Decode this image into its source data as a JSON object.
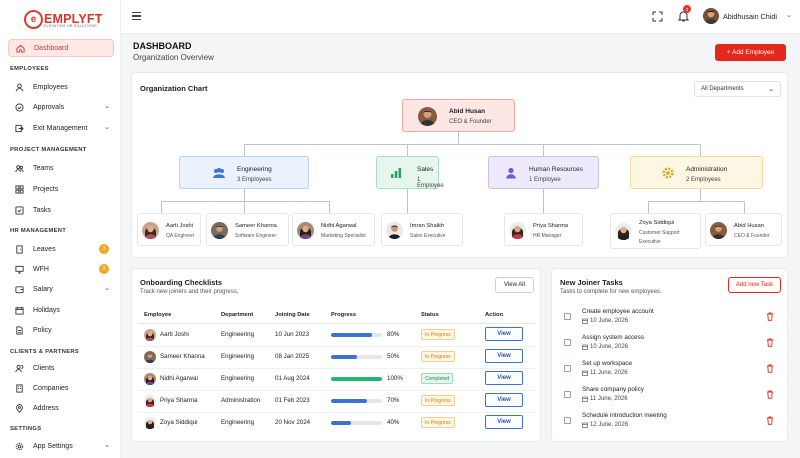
{
  "brand": {
    "name": "EMPLYFT",
    "tagline": "ELEVATING HR SOLUTIONS"
  },
  "sidebar": {
    "dashboard": "Dashboard",
    "sections": {
      "employees": "EMPLOYEES",
      "project": "PROJECT MANAGEMENT",
      "hr": "HR MANAGEMENT",
      "clients": "CLIENTS & PARTNERS",
      "settings": "SETTINGS"
    },
    "items": [
      {
        "label": "Employees"
      },
      {
        "label": "Approvals"
      },
      {
        "label": "Exit Management"
      },
      {
        "label": "Teams"
      },
      {
        "label": "Projects"
      },
      {
        "label": "Tasks"
      },
      {
        "label": "Leaves",
        "badge": "3"
      },
      {
        "label": "WFH",
        "badge": "2"
      },
      {
        "label": "Salary"
      },
      {
        "label": "Holidays"
      },
      {
        "label": "Policy"
      },
      {
        "label": "Clients"
      },
      {
        "label": "Companies"
      },
      {
        "label": "Address"
      },
      {
        "label": "App Settings"
      }
    ]
  },
  "topbar": {
    "notifications": "3",
    "user": "Abidhusain Chidi"
  },
  "page": {
    "title": "DASHBOARD",
    "subtitle": "Organization Overview",
    "add_button": "+ Add Employee"
  },
  "org": {
    "title": "Organization Chart",
    "filter": "All Departments",
    "ceo": {
      "name": "Abid Husan",
      "role": "CEO & Founder"
    },
    "departments": [
      {
        "name": "Engineering",
        "count": "3 Employees",
        "color": "#3d72e0"
      },
      {
        "name": "Sales",
        "count": "1 Employee",
        "color": "#22a35a"
      },
      {
        "name": "Human Resources",
        "count": "1 Employee",
        "color": "#7a55d6"
      },
      {
        "name": "Administration",
        "count": "2 Employees",
        "color": "#e7a11a"
      }
    ],
    "employees": [
      {
        "name": "Aarti Joshi",
        "role": "QA Engineer"
      },
      {
        "name": "Sameer Khanna",
        "role": "Software Engineer"
      },
      {
        "name": "Nidhi Agarwal",
        "role": "Marketing Specialist"
      },
      {
        "name": "Imran Shaikh",
        "role": "Sales Executive"
      },
      {
        "name": "Priya Sharma",
        "role": "HR Manager"
      },
      {
        "name": "Zoya Siddiqui",
        "role": "Customer Support Executive"
      },
      {
        "name": "Abid Husan",
        "role": "CEO & Founder"
      }
    ]
  },
  "onboarding": {
    "title": "Onboarding Checklists",
    "subtitle": "Track new joiners and their progress.",
    "view_all": "View All",
    "columns": [
      "Employee",
      "Department",
      "Joining Date",
      "Progress",
      "Status",
      "Action"
    ],
    "rows": [
      {
        "name": "Aarti Joshi",
        "dept": "Engineering",
        "date": "10 Jun 2023",
        "progress": 80,
        "progress_label": "80%",
        "status": "In Progress",
        "action": "View"
      },
      {
        "name": "Sameer Khanna",
        "dept": "Engineering",
        "date": "08 Jan 2025",
        "progress": 50,
        "progress_label": "50%",
        "status": "In Progress",
        "action": "View"
      },
      {
        "name": "Nidhi Agarwal",
        "dept": "Engineering",
        "date": "01 Aug 2024",
        "progress": 100,
        "progress_label": "100%",
        "status": "Completed",
        "action": "View"
      },
      {
        "name": "Priya Sharma",
        "dept": "Administration",
        "date": "01 Feb 2023",
        "progress": 70,
        "progress_label": "70%",
        "status": "In Progress",
        "action": "View"
      },
      {
        "name": "Zoya Siddiqui",
        "dept": "Engineering",
        "date": "20 Nov 2024",
        "progress": 40,
        "progress_label": "40%",
        "status": "In Progress",
        "action": "View"
      }
    ]
  },
  "tasks": {
    "title": "New Joiner Tasks",
    "subtitle": "Tasks to complete for new employees.",
    "add_button": "Add new Task",
    "items": [
      {
        "title": "Create employee account",
        "date": "10 June, 2026"
      },
      {
        "title": "Assign system access",
        "date": "10 June, 2026"
      },
      {
        "title": "Set up workspace",
        "date": "11 June, 2026"
      },
      {
        "title": "Share company policy",
        "date": "11 June, 2026"
      },
      {
        "title": "Schedule introduction meeting",
        "date": "12 June, 2026"
      }
    ]
  },
  "colors": {
    "accent": "#e5281e",
    "green": "#22b573",
    "blue": "#3d6fd8"
  }
}
